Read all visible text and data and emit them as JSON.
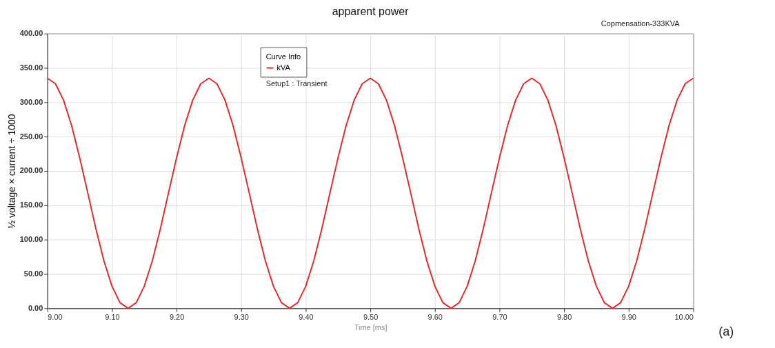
{
  "chart_data": {
    "type": "line",
    "title": "apparent power",
    "xlabel": "Time [ms]",
    "ylabel": "½ voltage × current ÷ 1000",
    "legend_title": "Curve Info",
    "annotations": [
      "Copmensation-333KVA",
      "Setup1 : Transient",
      "(a)"
    ],
    "x": [
      9.0,
      9.0125,
      9.025,
      9.0375,
      9.05,
      9.0625,
      9.075,
      9.0875,
      9.1,
      9.1125,
      9.125,
      9.1375,
      9.15,
      9.1625,
      9.175,
      9.1875,
      9.2,
      9.2125,
      9.225,
      9.2375,
      9.25,
      9.2625,
      9.275,
      9.2875,
      9.3,
      9.3125,
      9.325,
      9.3375,
      9.35,
      9.3625,
      9.375,
      9.3875,
      9.4,
      9.4125,
      9.425,
      9.4375,
      9.45,
      9.4625,
      9.475,
      9.4875,
      9.5,
      9.5125,
      9.525,
      9.5375,
      9.55,
      9.5625,
      9.575,
      9.5875,
      9.6,
      9.6125,
      9.625,
      9.6375,
      9.65,
      9.6625,
      9.675,
      9.6875,
      9.7,
      9.7125,
      9.725,
      9.7375,
      9.75,
      9.7625,
      9.775,
      9.7875,
      9.8,
      9.8125,
      9.825,
      9.8375,
      9.85,
      9.8625,
      9.875,
      9.8875,
      9.9,
      9.9125,
      9.925,
      9.9375,
      9.95,
      9.9625,
      9.975,
      9.9875,
      10.0
    ],
    "series": [
      {
        "name": "kVA",
        "color": "#e8262b",
        "values": [
          335,
          327,
          303,
          266,
          219,
          168,
          116,
          69,
          32,
          8,
          0,
          8,
          32,
          69,
          116,
          168,
          219,
          266,
          303,
          327,
          335,
          327,
          303,
          266,
          219,
          168,
          116,
          69,
          32,
          8,
          0,
          8,
          32,
          69,
          116,
          168,
          219,
          266,
          303,
          327,
          335,
          327,
          303,
          266,
          219,
          168,
          116,
          69,
          32,
          8,
          0,
          8,
          32,
          69,
          116,
          168,
          219,
          266,
          303,
          327,
          335,
          327,
          303,
          266,
          219,
          168,
          116,
          69,
          32,
          8,
          0,
          8,
          32,
          69,
          116,
          168,
          219,
          266,
          303,
          327,
          335
        ]
      }
    ],
    "xlim": [
      9.0,
      10.0
    ],
    "xticks": [
      {
        "value": 9.0,
        "label": "9.00"
      },
      {
        "value": 9.1,
        "label": "9.10"
      },
      {
        "value": 9.2,
        "label": "9.20"
      },
      {
        "value": 9.3,
        "label": "9.30"
      },
      {
        "value": 9.4,
        "label": "9.40"
      },
      {
        "value": 9.5,
        "label": "9.50"
      },
      {
        "value": 9.6,
        "label": "9.60"
      },
      {
        "value": 9.7,
        "label": "9.70"
      },
      {
        "value": 9.8,
        "label": "9.80"
      },
      {
        "value": 9.9,
        "label": "9.90"
      },
      {
        "value": 10.0,
        "label": "10.00"
      }
    ],
    "ylim": [
      0,
      400
    ],
    "yticks": [
      {
        "value": 0,
        "label": "0.00"
      },
      {
        "value": 50,
        "label": "50.00"
      },
      {
        "value": 100,
        "label": "100.00"
      },
      {
        "value": 150,
        "label": "150.00"
      },
      {
        "value": 200,
        "label": "200.00"
      },
      {
        "value": 250,
        "label": "250.00"
      },
      {
        "value": 300,
        "label": "300.00"
      },
      {
        "value": 350,
        "label": "350.00"
      },
      {
        "value": 400,
        "label": "400.00"
      }
    ],
    "grid": true,
    "legend": "top left",
    "marker": "none",
    "line_style": "solid"
  }
}
